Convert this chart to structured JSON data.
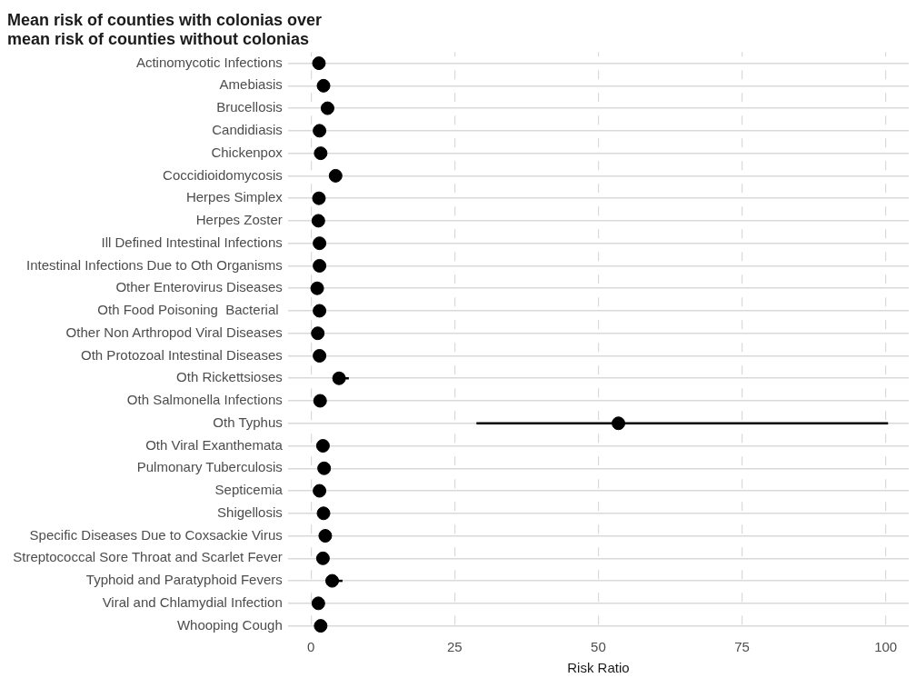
{
  "chart_data": {
    "type": "scatter",
    "title": "Mean risk of counties with colonias over\nmean risk of counties without colonias",
    "xlabel": "Risk Ratio",
    "orientation": "horizontal",
    "categories": [
      "Actinomycotic Infections",
      "Amebiasis",
      "Brucellosis",
      "Candidiasis",
      "Chickenpox",
      "Coccidioidomycosis",
      "Herpes Simplex",
      "Herpes Zoster",
      "Ill Defined Intestinal Infections",
      "Intestinal Infections Due to Oth Organisms",
      "Other Enterovirus Diseases",
      "Oth Food Poisoning  Bacterial ",
      "Other Non Arthropod Viral Diseases",
      "Oth Protozoal Intestinal Diseases",
      "Oth Rickettsioses",
      "Oth Salmonella Infections",
      "Oth Typhus",
      "Oth Viral Exanthemata",
      "Pulmonary Tuberculosis",
      "Septicemia",
      "Shigellosis",
      "Specific Diseases Due to Coxsackie Virus",
      "Streptococcal Sore Throat and Scarlet Fever",
      "Typhoid and Paratyphoid Fevers",
      "Viral and Chlamydial Infection",
      "Whooping Cough"
    ],
    "series": [
      {
        "color": "#000000",
        "values": [
          1.4,
          2.2,
          2.9,
          1.5,
          1.7,
          4.3,
          1.4,
          1.3,
          1.5,
          1.5,
          1.1,
          1.5,
          1.2,
          1.5,
          4.9,
          1.6,
          53.5,
          2.1,
          2.3,
          1.5,
          2.2,
          2.5,
          2.1,
          3.7,
          1.3,
          1.7
        ],
        "errors": [
          null,
          null,
          null,
          null,
          null,
          null,
          null,
          null,
          null,
          null,
          null,
          null,
          null,
          null,
          [
            4.2,
            6.6
          ],
          null,
          [
            28.8,
            100.4
          ],
          null,
          null,
          null,
          null,
          null,
          null,
          [
            3.1,
            5.5
          ],
          null,
          null
        ]
      }
    ],
    "xlim": [
      -4,
      104
    ],
    "xticks": [
      0,
      25,
      50,
      75,
      100
    ],
    "grid": true,
    "marker": "circle",
    "legend": false
  }
}
